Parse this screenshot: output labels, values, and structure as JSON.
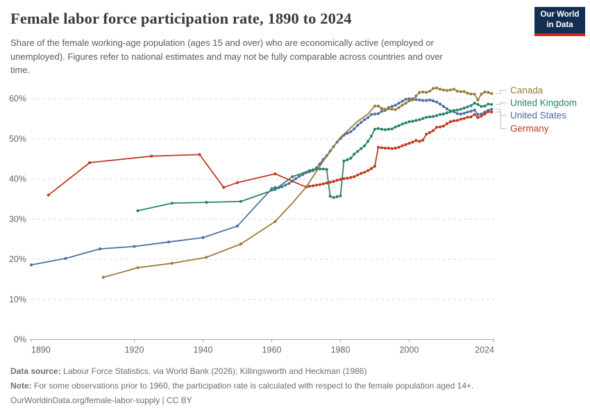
{
  "header": {
    "logo": {
      "line1": "Our World",
      "line2": "in Data"
    }
  },
  "footer": {
    "datasource_label": "Data source:",
    "datasource_text": " Labour Force Statistics, via World Bank (2026); Killingsworth and Heckman (1986)",
    "note_label": "Note:",
    "note_text": " For some observations prior to 1960, the participation rate is calculated with respect to the female population aged 14+.",
    "link_text": "OurWorldinData.org/female-labor-supply | CC BY"
  },
  "chart_data": {
    "type": "line",
    "title": "Female labor force participation rate, 1890 to 2024",
    "subtitle": "Share of the female working-age population (ages 15 and over) who are economically active (employed or\nunemployed). Figures refer to national estimates and may not be fully comparable across countries and over\ntime.",
    "xlabel": "",
    "ylabel": "",
    "xlim": [
      1890,
      2024
    ],
    "ylim": [
      0,
      62
    ],
    "x_ticks": [
      1890,
      1920,
      1940,
      1960,
      1980,
      2000,
      2024
    ],
    "y_ticks": [
      0,
      10,
      20,
      30,
      40,
      50,
      60
    ],
    "y_tick_suffix": "%",
    "grid": "horizontal-dashed",
    "legend_position": "right",
    "axis_color": "#a6a6a6",
    "grid_color": "#dcdcdc",
    "tick_label_color": "#666666",
    "connector_color": "#c8c8c8",
    "series": [
      {
        "name": "Canada",
        "color": "#9d7a3a",
        "no_marker_years": [
          1966,
          1970,
          1975,
          1980,
          1985,
          1988
        ],
        "points": [
          [
            1911,
            15.5
          ],
          [
            1921,
            17.9
          ],
          [
            1931,
            19.0
          ],
          [
            1941,
            20.5
          ],
          [
            1951,
            23.8
          ],
          [
            1961,
            29.4
          ],
          [
            1966,
            34.0
          ],
          [
            1970,
            38.0
          ],
          [
            1975,
            44.5
          ],
          [
            1980,
            50.4
          ],
          [
            1985,
            54.4
          ],
          [
            1988,
            56.2
          ],
          [
            1990,
            58.2
          ],
          [
            1991,
            58.2
          ],
          [
            1992,
            57.6
          ],
          [
            1993,
            57.4
          ],
          [
            1994,
            57.5
          ],
          [
            1995,
            57.4
          ],
          [
            1996,
            57.3
          ],
          [
            1997,
            57.8
          ],
          [
            1998,
            58.4
          ],
          [
            1999,
            58.9
          ],
          [
            2000,
            59.5
          ],
          [
            2001,
            59.7
          ],
          [
            2002,
            60.7
          ],
          [
            2003,
            61.6
          ],
          [
            2004,
            61.7
          ],
          [
            2005,
            61.6
          ],
          [
            2006,
            61.9
          ],
          [
            2007,
            62.6
          ],
          [
            2008,
            62.7
          ],
          [
            2009,
            62.4
          ],
          [
            2010,
            62.2
          ],
          [
            2011,
            62.1
          ],
          [
            2012,
            62.2
          ],
          [
            2013,
            62.4
          ],
          [
            2014,
            61.9
          ],
          [
            2015,
            61.8
          ],
          [
            2016,
            61.8
          ],
          [
            2017,
            61.4
          ],
          [
            2018,
            61.2
          ],
          [
            2019,
            61.2
          ],
          [
            2020,
            59.7
          ],
          [
            2021,
            61.2
          ],
          [
            2022,
            61.7
          ],
          [
            2023,
            61.6
          ],
          [
            2024,
            61.3
          ]
        ]
      },
      {
        "name": "United Kingdom",
        "color": "#2c8465",
        "no_marker_years": [],
        "points": [
          [
            1921,
            32.1
          ],
          [
            1931,
            34.0
          ],
          [
            1941,
            34.2
          ],
          [
            1951,
            34.4
          ],
          [
            1961,
            37.4
          ],
          [
            1966,
            40.6
          ],
          [
            1971,
            42.1
          ],
          [
            1972,
            42.3
          ],
          [
            1973,
            42.4
          ],
          [
            1974,
            42.5
          ],
          [
            1975,
            42.5
          ],
          [
            1976,
            42.4
          ],
          [
            1977,
            35.7
          ],
          [
            1978,
            35.4
          ],
          [
            1979,
            35.6
          ],
          [
            1980,
            35.8
          ],
          [
            1981,
            44.5
          ],
          [
            1982,
            44.8
          ],
          [
            1983,
            45.2
          ],
          [
            1984,
            46.2
          ],
          [
            1985,
            46.9
          ],
          [
            1986,
            47.6
          ],
          [
            1987,
            48.3
          ],
          [
            1988,
            49.4
          ],
          [
            1989,
            50.7
          ],
          [
            1990,
            52.4
          ],
          [
            1991,
            52.6
          ],
          [
            1992,
            52.4
          ],
          [
            1993,
            52.3
          ],
          [
            1994,
            52.4
          ],
          [
            1995,
            52.5
          ],
          [
            1996,
            53.0
          ],
          [
            1997,
            53.3
          ],
          [
            1998,
            53.7
          ],
          [
            1999,
            54.0
          ],
          [
            2000,
            54.3
          ],
          [
            2001,
            54.4
          ],
          [
            2002,
            54.6
          ],
          [
            2003,
            54.8
          ],
          [
            2004,
            55.1
          ],
          [
            2005,
            55.4
          ],
          [
            2006,
            55.5
          ],
          [
            2007,
            55.6
          ],
          [
            2008,
            55.8
          ],
          [
            2009,
            56.1
          ],
          [
            2010,
            56.2
          ],
          [
            2011,
            56.5
          ],
          [
            2012,
            56.8
          ],
          [
            2013,
            57.1
          ],
          [
            2014,
            57.2
          ],
          [
            2015,
            57.4
          ],
          [
            2016,
            57.7
          ],
          [
            2017,
            58.0
          ],
          [
            2018,
            58.3
          ],
          [
            2019,
            58.9
          ],
          [
            2020,
            58.6
          ],
          [
            2021,
            58.1
          ],
          [
            2022,
            58.2
          ],
          [
            2023,
            58.7
          ],
          [
            2024,
            58.6
          ]
        ]
      },
      {
        "name": "United States",
        "color": "#4c6fa5",
        "no_marker_years": [],
        "points": [
          [
            1890,
            18.6
          ],
          [
            1900,
            20.2
          ],
          [
            1910,
            22.6
          ],
          [
            1920,
            23.2
          ],
          [
            1930,
            24.3
          ],
          [
            1940,
            25.4
          ],
          [
            1950,
            28.3
          ],
          [
            1960,
            37.6
          ],
          [
            1961,
            37.9
          ],
          [
            1962,
            37.8
          ],
          [
            1963,
            38.1
          ],
          [
            1964,
            38.5
          ],
          [
            1965,
            38.9
          ],
          [
            1966,
            39.5
          ],
          [
            1967,
            40.1
          ],
          [
            1968,
            40.7
          ],
          [
            1969,
            41.1
          ],
          [
            1970,
            41.6
          ],
          [
            1971,
            41.8
          ],
          [
            1972,
            42.1
          ],
          [
            1973,
            42.8
          ],
          [
            1974,
            43.8
          ],
          [
            1975,
            44.9
          ],
          [
            1976,
            45.8
          ],
          [
            1977,
            47.0
          ],
          [
            1978,
            48.1
          ],
          [
            1979,
            49.2
          ],
          [
            1980,
            50.1
          ],
          [
            1981,
            50.9
          ],
          [
            1982,
            51.4
          ],
          [
            1983,
            51.8
          ],
          [
            1984,
            52.5
          ],
          [
            1985,
            53.4
          ],
          [
            1986,
            54.1
          ],
          [
            1987,
            54.8
          ],
          [
            1988,
            55.3
          ],
          [
            1989,
            56.1
          ],
          [
            1990,
            56.2
          ],
          [
            1991,
            56.3
          ],
          [
            1992,
            56.9
          ],
          [
            1993,
            57.1
          ],
          [
            1994,
            57.8
          ],
          [
            1995,
            58.1
          ],
          [
            1996,
            58.4
          ],
          [
            1997,
            58.9
          ],
          [
            1998,
            59.4
          ],
          [
            1999,
            59.9
          ],
          [
            2000,
            60.0
          ],
          [
            2001,
            60.0
          ],
          [
            2002,
            59.8
          ],
          [
            2003,
            59.7
          ],
          [
            2004,
            59.6
          ],
          [
            2005,
            59.6
          ],
          [
            2006,
            59.7
          ],
          [
            2007,
            59.5
          ],
          [
            2008,
            59.2
          ],
          [
            2009,
            58.7
          ],
          [
            2010,
            58.1
          ],
          [
            2011,
            57.5
          ],
          [
            2012,
            57.0
          ],
          [
            2013,
            56.8
          ],
          [
            2014,
            56.3
          ],
          [
            2015,
            56.2
          ],
          [
            2016,
            56.4
          ],
          [
            2017,
            56.7
          ],
          [
            2018,
            56.9
          ],
          [
            2019,
            57.2
          ],
          [
            2020,
            56.1
          ],
          [
            2021,
            56.2
          ],
          [
            2022,
            56.7
          ],
          [
            2023,
            57.1
          ],
          [
            2024,
            57.4
          ]
        ]
      },
      {
        "name": "Germany",
        "color": "#c03a20",
        "no_marker_years": [],
        "points": [
          [
            1895,
            36.0
          ],
          [
            1907,
            44.1
          ],
          [
            1925,
            45.7
          ],
          [
            1939,
            46.1
          ],
          [
            1946,
            37.9
          ],
          [
            1950,
            39.1
          ],
          [
            1961,
            41.3
          ],
          [
            1970,
            38.0
          ],
          [
            1971,
            38.2
          ],
          [
            1972,
            38.3
          ],
          [
            1973,
            38.5
          ],
          [
            1974,
            38.6
          ],
          [
            1975,
            38.8
          ],
          [
            1976,
            39.0
          ],
          [
            1977,
            39.2
          ],
          [
            1978,
            39.4
          ],
          [
            1979,
            39.7
          ],
          [
            1980,
            39.9
          ],
          [
            1981,
            40.1
          ],
          [
            1982,
            40.2
          ],
          [
            1983,
            40.4
          ],
          [
            1984,
            40.6
          ],
          [
            1985,
            41.0
          ],
          [
            1986,
            41.4
          ],
          [
            1987,
            41.7
          ],
          [
            1988,
            42.1
          ],
          [
            1989,
            42.6
          ],
          [
            1990,
            43.2
          ],
          [
            1991,
            47.9
          ],
          [
            1992,
            47.8
          ],
          [
            1993,
            47.7
          ],
          [
            1994,
            47.7
          ],
          [
            1995,
            47.6
          ],
          [
            1996,
            47.7
          ],
          [
            1997,
            47.9
          ],
          [
            1998,
            48.3
          ],
          [
            1999,
            48.6
          ],
          [
            2000,
            48.9
          ],
          [
            2001,
            49.2
          ],
          [
            2002,
            49.6
          ],
          [
            2003,
            49.4
          ],
          [
            2004,
            49.7
          ],
          [
            2005,
            51.2
          ],
          [
            2006,
            51.6
          ],
          [
            2007,
            52.1
          ],
          [
            2008,
            52.9
          ],
          [
            2009,
            53.0
          ],
          [
            2010,
            53.2
          ],
          [
            2011,
            53.8
          ],
          [
            2012,
            54.3
          ],
          [
            2013,
            54.5
          ],
          [
            2014,
            54.6
          ],
          [
            2015,
            54.9
          ],
          [
            2016,
            55.1
          ],
          [
            2017,
            55.4
          ],
          [
            2018,
            55.5
          ],
          [
            2019,
            56.1
          ],
          [
            2020,
            55.3
          ],
          [
            2021,
            55.7
          ],
          [
            2022,
            56.2
          ],
          [
            2023,
            56.8
          ],
          [
            2024,
            56.7
          ]
        ]
      }
    ]
  }
}
